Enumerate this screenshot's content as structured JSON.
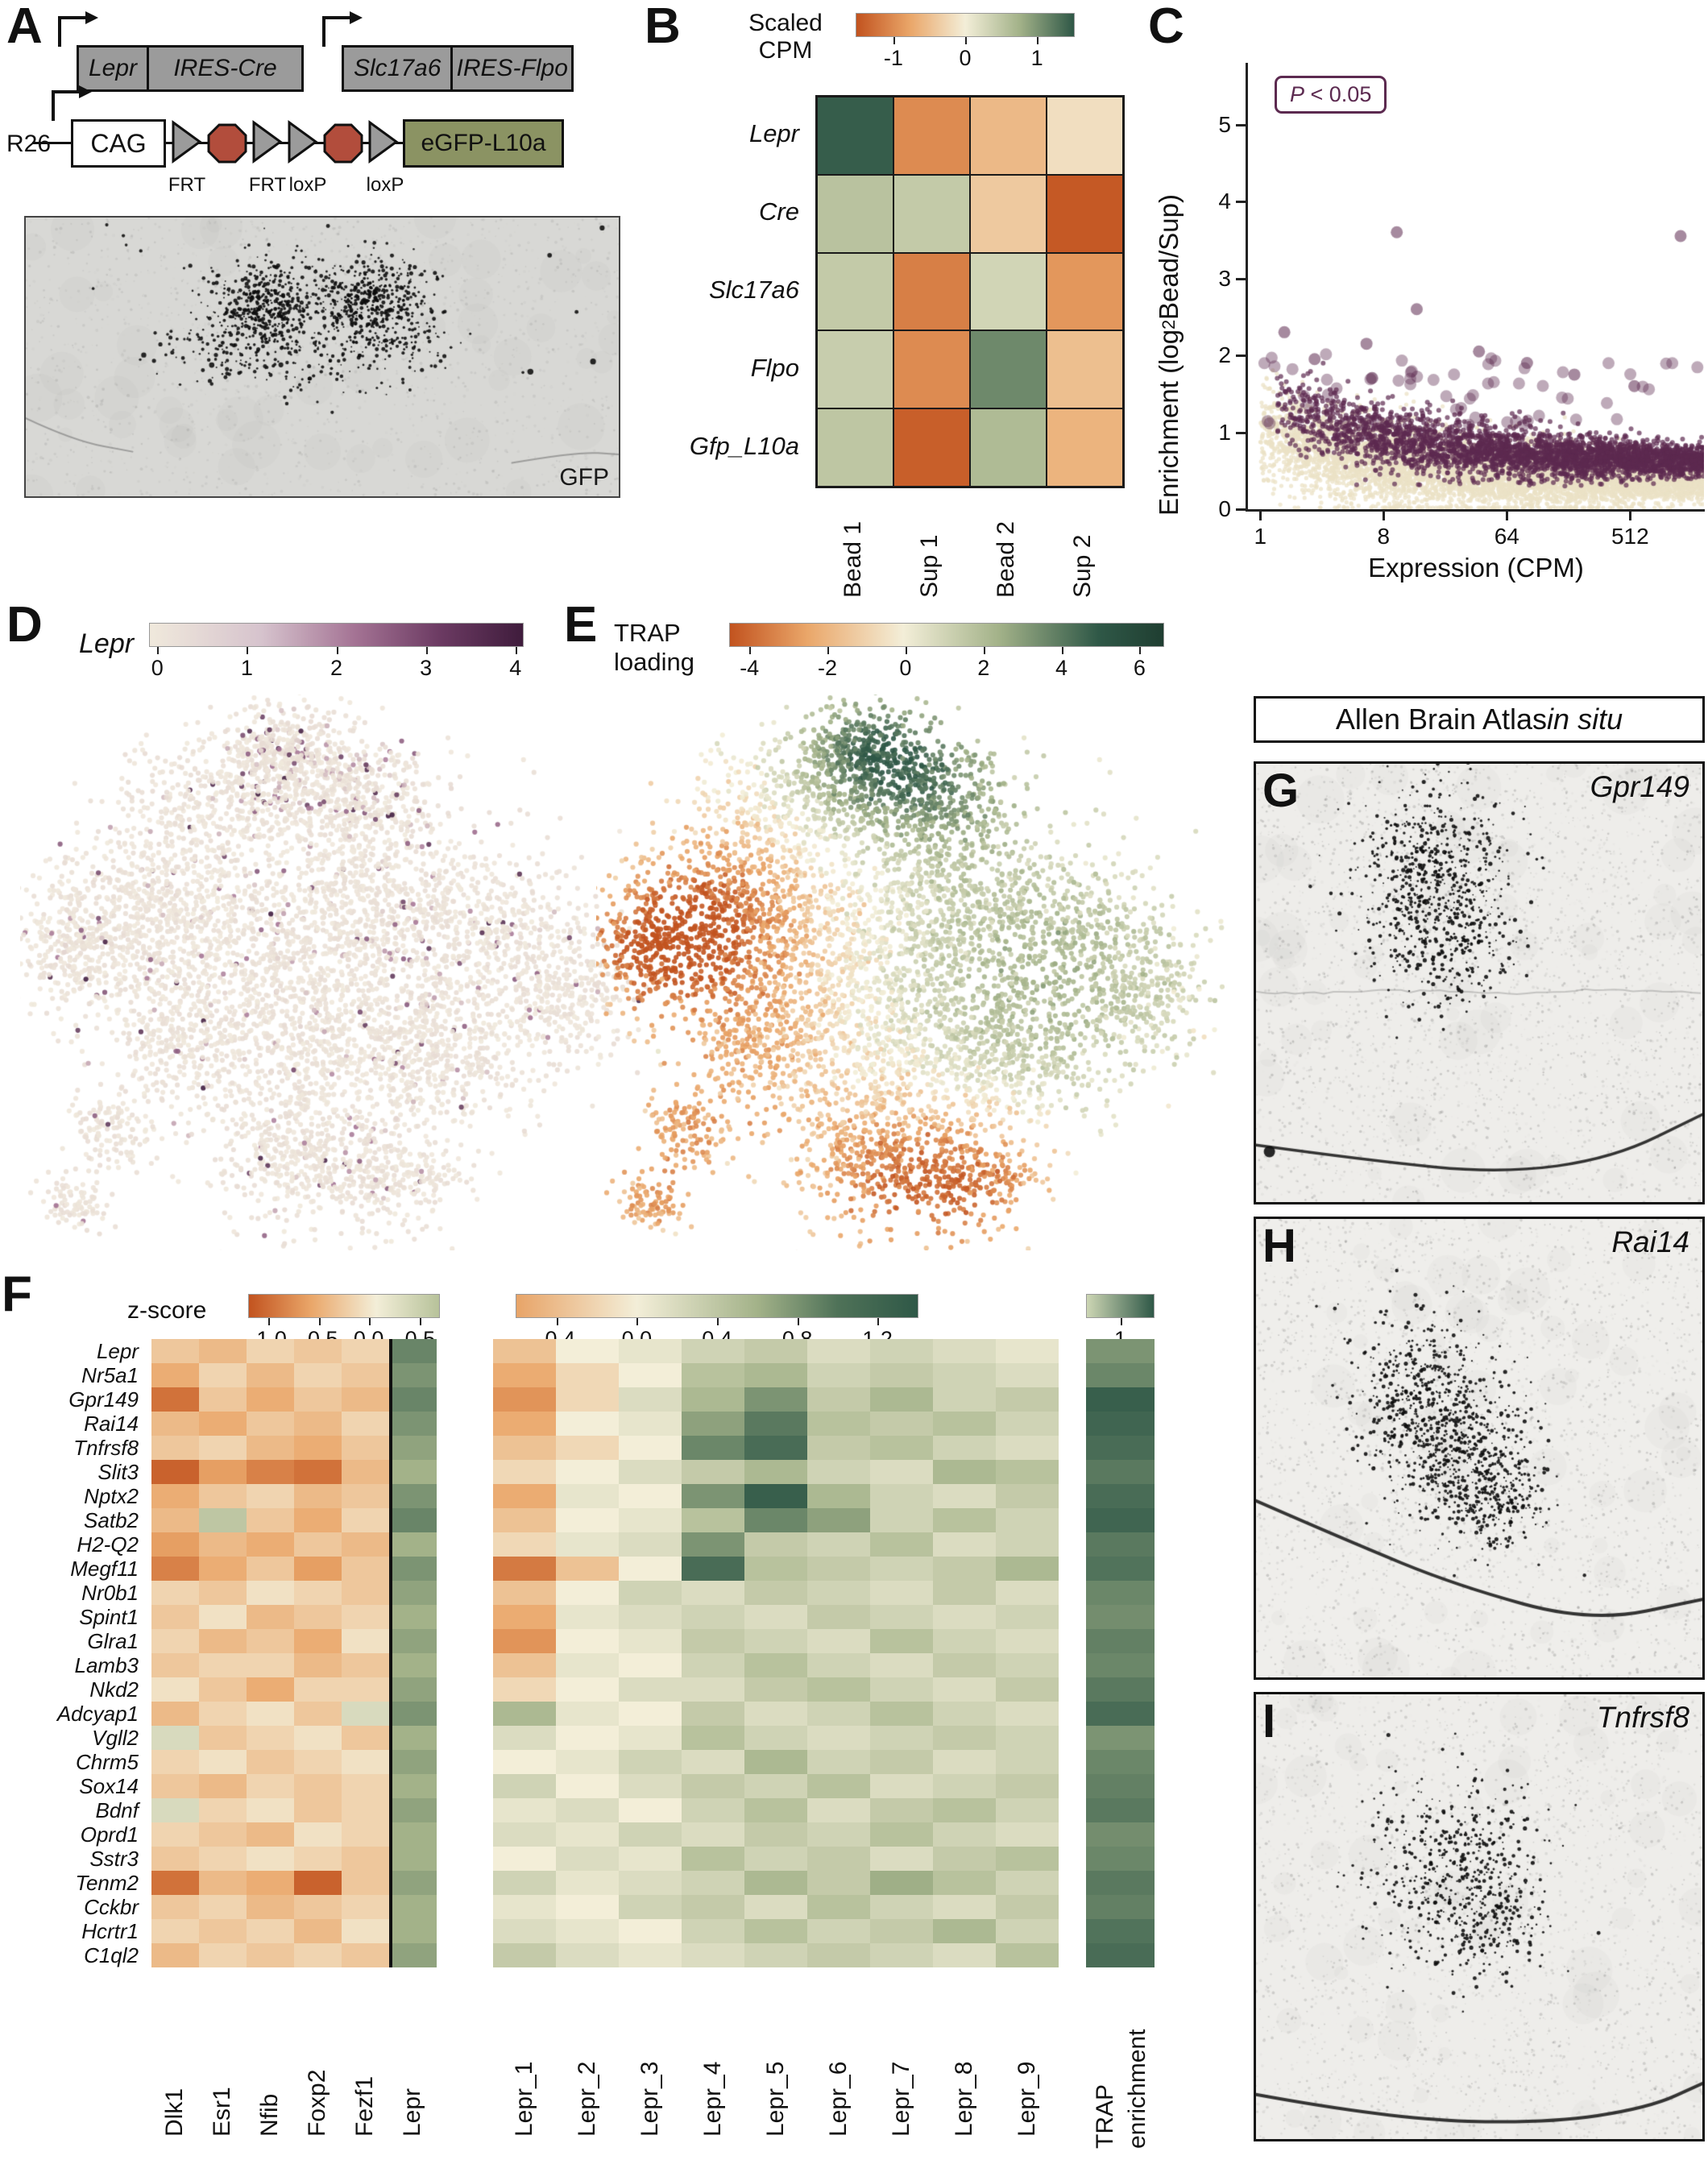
{
  "panelA": {
    "label": "A",
    "construct1": {
      "gene": "Lepr",
      "cassette": "IRES-Cre"
    },
    "construct2": {
      "gene": "Slc17a6",
      "cassette": "IRES-Flpo"
    },
    "construct3": {
      "locus": "R26",
      "promoter": "CAG",
      "reporter": "eGFP-L10a",
      "sites": [
        "FRT",
        "FRT",
        "loxP",
        "loxP"
      ]
    },
    "image_label": "GFP"
  },
  "panelB": {
    "label": "B",
    "colorbar_title_line1": "Scaled",
    "colorbar_title_line2": "CPM",
    "colorbar_ticks": [
      "-1",
      "0",
      "1"
    ],
    "row_labels": [
      "Lepr",
      "Cre",
      "Slc17a6",
      "Flpo",
      "Gfp_L10a"
    ],
    "col_labels": [
      "Bead 1",
      "Sup 1",
      "Bead 2",
      "Sup 2"
    ]
  },
  "panelC": {
    "label": "C",
    "pvalue_pre": "P",
    "pvalue_post": " < 0.05",
    "ylabel_pre": "Enrichment (log",
    "ylabel_sub": "2",
    "ylabel_post": " Bead/Sup)",
    "xlabel": "Expression (CPM)",
    "yticks": [
      "0",
      "1",
      "2",
      "3",
      "4",
      "5"
    ],
    "xticks": [
      "1",
      "8",
      "64",
      "512"
    ]
  },
  "panelD": {
    "label": "D",
    "colorbar_title": "Lepr",
    "colorbar_ticks": [
      "0",
      "1",
      "2",
      "3",
      "4"
    ]
  },
  "panelE": {
    "label": "E",
    "colorbar_title_line1": "TRAP",
    "colorbar_title_line2": "loading",
    "colorbar_ticks": [
      "-4",
      "-2",
      "0",
      "2",
      "4",
      "6"
    ]
  },
  "panelF": {
    "label": "F",
    "scale_label": "z-score",
    "colorbar1_ticks": [
      "-1.0",
      "-0.5",
      "0.0",
      "0.5"
    ],
    "colorbar2_ticks": [
      "-0.4",
      "0.0",
      "0.4",
      "0.8",
      "1.2"
    ],
    "colorbar3_ticks": [
      "1"
    ],
    "genes": [
      "Lepr",
      "Nr5a1",
      "Gpr149",
      "Rai14",
      "Tnfrsf8",
      "Slit3",
      "Nptx2",
      "Satb2",
      "H2-Q2",
      "Megf11",
      "Nr0b1",
      "Spint1",
      "Glra1",
      "Lamb3",
      "Nkd2",
      "Adcyap1",
      "Vgll2",
      "Chrm5",
      "Sox14",
      "Bdnf",
      "Oprd1",
      "Sstr3",
      "Tenm2",
      "Cckbr",
      "Hcrtr1",
      "C1ql2"
    ],
    "left_cols": [
      "Dlk1",
      "Esr1",
      "Nfib",
      "Foxp2",
      "Fezf1",
      "Lepr"
    ],
    "mid_cols": [
      "Lepr_1",
      "Lepr_2",
      "Lepr_3",
      "Lepr_4",
      "Lepr_5",
      "Lepr_6",
      "Lepr_7",
      "Lepr_8",
      "Lepr_9"
    ],
    "right_col": "TRAP enrichment"
  },
  "atlas": {
    "header_pre": "Allen Brain Atlas ",
    "header_italic": "in situ",
    "panels": [
      {
        "label": "G",
        "gene": "Gpr149"
      },
      {
        "label": "H",
        "gene": "Rai14"
      },
      {
        "label": "I",
        "gene": "Tnfrsf8"
      }
    ]
  },
  "colors": {
    "diverge_neg": "#c2531f",
    "diverge_mid": "#f3eed8",
    "diverge_pos": "#2f5847",
    "purple_low": "#f0e9dc",
    "purple_high": "#3f1c3c",
    "sig_point": "#5c2a50",
    "nonsig_point": "#ebe1c6",
    "construct_gray": "#9b9b9b",
    "reporter_green": "#8b9363",
    "stop_red": "#b24d3c"
  },
  "chart_data": [
    {
      "panel": "B",
      "type": "heatmap",
      "title": "Scaled CPM",
      "rows": [
        "Lepr",
        "Cre",
        "Slc17a6",
        "Flpo",
        "Gfp_L10a"
      ],
      "cols": [
        "Bead 1",
        "Sup 1",
        "Bead 2",
        "Sup 2"
      ],
      "values": [
        [
          1.6,
          -0.9,
          -0.5,
          -0.15
        ],
        [
          0.6,
          0.5,
          -0.35,
          -1.3
        ],
        [
          0.5,
          -1.0,
          0.35,
          -0.8
        ],
        [
          0.45,
          -0.9,
          1.2,
          -0.45
        ],
        [
          0.55,
          -1.25,
          0.7,
          -0.55
        ]
      ],
      "colorbar_ticks": [
        -1,
        0,
        1
      ]
    },
    {
      "panel": "C",
      "type": "scatter",
      "xlabel": "Expression (CPM)",
      "ylabel": "Enrichment (log2 Bead/Sup)",
      "xscale": "log",
      "xticks": [
        1,
        8,
        64,
        512
      ],
      "yticks": [
        0,
        1,
        2,
        3,
        4,
        5
      ],
      "ylim": [
        0,
        5.8
      ],
      "annotation": "P < 0.05",
      "series": [
        {
          "name": "enriched P < 0.05",
          "color": "#5c2a50"
        },
        {
          "name": "not significant",
          "color": "#ebe1c6"
        }
      ],
      "notable_points": [
        [
          10,
          3.6
        ],
        [
          1200,
          3.55
        ],
        [
          14,
          2.6
        ],
        [
          6,
          2.15
        ],
        [
          1.5,
          2.3
        ],
        [
          2.5,
          1.95
        ],
        [
          40,
          2.05
        ],
        [
          90,
          1.9
        ],
        [
          200,
          1.75
        ],
        [
          550,
          1.6
        ]
      ],
      "trend": "enrichment band declines from ~1.3 at CPM 1 to ~0.5 at CPM 1000"
    },
    {
      "panel": "D",
      "type": "scatter",
      "kind": "UMAP",
      "color_by": "Lepr expression",
      "color_scale_ticks": [
        0,
        1,
        2,
        3,
        4
      ],
      "description": "UMAP of single cells; mostly low (cream) with sparse Lepr-high (purple) cells, denser in the top cluster"
    },
    {
      "panel": "E",
      "type": "scatter",
      "kind": "UMAP",
      "color_by": "TRAP loading",
      "color_scale_ticks": [
        -4,
        -2,
        0,
        2,
        4,
        6
      ],
      "description": "Same UMAP colored by TRAP loading; top cluster high (green), left arm and bottom clusters low (orange)"
    },
    {
      "panel": "F_left",
      "type": "heatmap",
      "colorbar_ticks": [
        -1.0,
        -0.5,
        0.0,
        0.5
      ],
      "cols": [
        "Dlk1",
        "Esr1",
        "Nfib",
        "Foxp2",
        "Fezf1",
        "Lepr"
      ],
      "rows_ref": "panelF.genes",
      "values": [
        [
          -0.3,
          -0.4,
          -0.2,
          -0.3,
          -0.2,
          0.45
        ],
        [
          -0.5,
          -0.2,
          -0.4,
          -0.2,
          -0.3,
          0.4
        ],
        [
          -0.9,
          -0.3,
          -0.5,
          -0.3,
          -0.4,
          0.45
        ],
        [
          -0.4,
          -0.5,
          -0.3,
          -0.4,
          -0.2,
          0.4
        ],
        [
          -0.3,
          -0.2,
          -0.4,
          -0.5,
          -0.3,
          0.35
        ],
        [
          -1.0,
          -0.6,
          -0.8,
          -0.9,
          -0.4,
          0.3
        ],
        [
          -0.5,
          -0.3,
          -0.2,
          -0.4,
          -0.3,
          0.4
        ],
        [
          -0.4,
          0.2,
          -0.3,
          -0.5,
          -0.2,
          0.45
        ],
        [
          -0.6,
          -0.4,
          -0.5,
          -0.3,
          -0.4,
          0.3
        ],
        [
          -0.8,
          -0.5,
          -0.3,
          -0.6,
          -0.3,
          0.4
        ],
        [
          -0.2,
          -0.3,
          -0.1,
          -0.2,
          -0.3,
          0.35
        ],
        [
          -0.3,
          -0.1,
          -0.4,
          -0.3,
          -0.2,
          0.3
        ],
        [
          -0.2,
          -0.4,
          -0.3,
          -0.5,
          -0.1,
          0.35
        ],
        [
          -0.3,
          -0.2,
          -0.2,
          -0.4,
          -0.3,
          0.3
        ],
        [
          -0.1,
          -0.3,
          -0.5,
          -0.2,
          -0.2,
          0.35
        ],
        [
          -0.4,
          -0.2,
          -0.1,
          -0.3,
          0.1,
          0.4
        ],
        [
          0.1,
          -0.3,
          -0.2,
          -0.1,
          -0.3,
          0.3
        ],
        [
          -0.2,
          -0.1,
          -0.3,
          -0.2,
          -0.1,
          0.35
        ],
        [
          -0.3,
          -0.4,
          -0.2,
          -0.3,
          -0.2,
          0.3
        ],
        [
          0.1,
          -0.2,
          -0.1,
          -0.3,
          -0.2,
          0.35
        ],
        [
          -0.2,
          -0.3,
          -0.4,
          -0.1,
          -0.2,
          0.3
        ],
        [
          -0.3,
          -0.2,
          -0.1,
          -0.2,
          -0.3,
          0.3
        ],
        [
          -0.9,
          -0.4,
          -0.5,
          -1.0,
          -0.3,
          0.35
        ],
        [
          -0.3,
          -0.2,
          -0.4,
          -0.3,
          -0.2,
          0.3
        ],
        [
          -0.2,
          -0.3,
          -0.2,
          -0.4,
          -0.1,
          0.3
        ],
        [
          -0.4,
          -0.2,
          -0.3,
          -0.2,
          -0.3,
          0.35
        ]
      ]
    },
    {
      "panel": "F_mid",
      "type": "heatmap",
      "colorbar_ticks": [
        -0.4,
        0.0,
        0.4,
        0.8,
        1.2
      ],
      "cols": [
        "Lepr_1",
        "Lepr_2",
        "Lepr_3",
        "Lepr_4",
        "Lepr_5",
        "Lepr_6",
        "Lepr_7",
        "Lepr_8",
        "Lepr_9"
      ],
      "rows_ref": "panelF.genes",
      "values": [
        [
          -0.2,
          0.0,
          0.1,
          0.3,
          0.4,
          0.2,
          0.3,
          0.2,
          0.1
        ],
        [
          -0.3,
          -0.1,
          0.0,
          0.5,
          0.6,
          0.3,
          0.4,
          0.3,
          0.2
        ],
        [
          -0.4,
          -0.1,
          0.2,
          0.6,
          0.9,
          0.4,
          0.6,
          0.3,
          0.4
        ],
        [
          -0.3,
          0.0,
          0.1,
          0.8,
          1.1,
          0.5,
          0.4,
          0.5,
          0.3
        ],
        [
          -0.2,
          -0.1,
          0.0,
          1.0,
          1.2,
          0.4,
          0.5,
          0.3,
          0.2
        ],
        [
          -0.1,
          0.0,
          0.2,
          0.4,
          0.6,
          0.3,
          0.2,
          0.6,
          0.5
        ],
        [
          -0.3,
          0.1,
          0.0,
          0.9,
          1.3,
          0.6,
          0.3,
          0.2,
          0.4
        ],
        [
          -0.2,
          0.0,
          0.1,
          0.5,
          1.0,
          0.8,
          0.3,
          0.5,
          0.3
        ],
        [
          -0.1,
          0.1,
          0.2,
          0.9,
          0.4,
          0.3,
          0.5,
          0.2,
          0.3
        ],
        [
          -0.5,
          -0.2,
          0.0,
          1.2,
          0.5,
          0.4,
          0.3,
          0.4,
          0.6
        ],
        [
          -0.2,
          0.0,
          0.3,
          0.2,
          0.4,
          0.3,
          0.2,
          0.4,
          0.2
        ],
        [
          -0.3,
          0.1,
          0.2,
          0.3,
          0.2,
          0.4,
          0.3,
          0.2,
          0.3
        ],
        [
          -0.4,
          0.0,
          0.1,
          0.4,
          0.3,
          0.2,
          0.5,
          0.3,
          0.2
        ],
        [
          -0.2,
          0.1,
          0.0,
          0.3,
          0.5,
          0.3,
          0.2,
          0.4,
          0.3
        ],
        [
          -0.1,
          0.0,
          0.2,
          0.2,
          0.4,
          0.5,
          0.3,
          0.2,
          0.4
        ],
        [
          0.6,
          0.1,
          0.0,
          0.4,
          0.2,
          0.3,
          0.5,
          0.3,
          0.2
        ],
        [
          0.2,
          0.0,
          0.1,
          0.5,
          0.3,
          0.2,
          0.3,
          0.4,
          0.3
        ],
        [
          0.0,
          0.1,
          0.3,
          0.2,
          0.6,
          0.3,
          0.4,
          0.2,
          0.3
        ],
        [
          0.3,
          0.0,
          0.2,
          0.4,
          0.3,
          0.5,
          0.2,
          0.3,
          0.4
        ],
        [
          0.1,
          0.2,
          0.0,
          0.3,
          0.5,
          0.2,
          0.4,
          0.5,
          0.3
        ],
        [
          0.2,
          0.1,
          0.3,
          0.2,
          0.4,
          0.3,
          0.5,
          0.3,
          0.2
        ],
        [
          0.0,
          0.2,
          0.1,
          0.5,
          0.3,
          0.4,
          0.2,
          0.4,
          0.5
        ],
        [
          0.3,
          0.1,
          0.2,
          0.3,
          0.6,
          0.4,
          0.7,
          0.5,
          0.3
        ],
        [
          0.1,
          0.0,
          0.3,
          0.4,
          0.2,
          0.5,
          0.3,
          0.2,
          0.4
        ],
        [
          0.2,
          0.1,
          0.0,
          0.3,
          0.5,
          0.3,
          0.4,
          0.6,
          0.3
        ],
        [
          0.4,
          0.2,
          0.1,
          0.2,
          0.3,
          0.4,
          0.3,
          0.2,
          0.5
        ]
      ]
    },
    {
      "panel": "F_right",
      "type": "heatmap",
      "colorbar_ticks": [
        1
      ],
      "cols": [
        "TRAP enrichment"
      ],
      "rows_ref": "panelF.genes",
      "values": [
        0.9,
        1.0,
        1.3,
        1.25,
        1.2,
        1.1,
        1.2,
        1.25,
        1.1,
        1.15,
        1.0,
        0.95,
        1.05,
        1.0,
        1.1,
        1.2,
        0.9,
        1.0,
        1.05,
        1.1,
        0.95,
        1.0,
        1.1,
        1.05,
        1.15,
        1.2
      ]
    }
  ]
}
